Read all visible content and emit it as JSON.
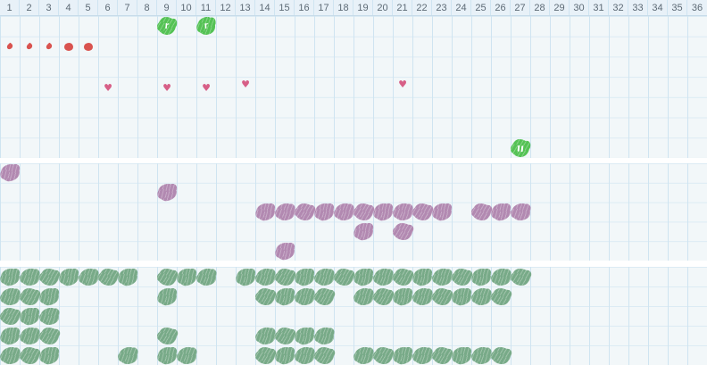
{
  "day_labels": [
    "1",
    "2",
    "3",
    "4",
    "5",
    "6",
    "7",
    "8",
    "9",
    "10",
    "11",
    "12",
    "13",
    "14",
    "15",
    "16",
    "17",
    "18",
    "19",
    "20",
    "21",
    "22",
    "23",
    "24",
    "25",
    "26",
    "27",
    "28",
    "29",
    "30",
    "31",
    "32",
    "33",
    "34",
    "35",
    "36"
  ],
  "colors": {
    "background": "#f2f7f9",
    "grid_vertical": "#cfe4f1",
    "grid_horizontal": "#dcebf4",
    "header_bg": "#e8f1f8",
    "header_border": "#c6dbe9",
    "header_text": "#5d6a75",
    "bright_green": "#54c254",
    "sage_green": "#78aa88",
    "purple": "#b289b1",
    "red": "#d9534f",
    "pink": "#d75f87",
    "gap": "#ffffff"
  },
  "icons": {
    "flower-r": {
      "glyph": "r"
    },
    "flower-pause": {
      "glyph": "‖"
    },
    "heart": {
      "glyph": "♥"
    },
    "drop-small": {
      "glyph": "small-drop"
    },
    "drop-large": {
      "glyph": "large-drop"
    },
    "blob-purple": {
      "glyph": "scribble-blob"
    },
    "blob-green": {
      "glyph": "scribble-blob"
    }
  },
  "chart_data": {
    "type": "table",
    "title": "",
    "x_labels": [
      "1",
      "2",
      "3",
      "4",
      "5",
      "6",
      "7",
      "8",
      "9",
      "10",
      "11",
      "12",
      "13",
      "14",
      "15",
      "16",
      "17",
      "18",
      "19",
      "20",
      "21",
      "22",
      "23",
      "24",
      "25",
      "26",
      "27",
      "28",
      "29",
      "30",
      "31",
      "32",
      "33",
      "34",
      "35",
      "36"
    ],
    "x_range": [
      1,
      36
    ],
    "grid": true,
    "sections": [
      {
        "id": "top",
        "rows": 7
      },
      {
        "id": "middle",
        "rows": 5
      },
      {
        "id": "bottom",
        "rows": 5
      }
    ],
    "rows": [
      {
        "section": "top",
        "row": 1,
        "symbol": "flower-r",
        "days": [
          9,
          11
        ]
      },
      {
        "section": "top",
        "row": 2,
        "symbol": "drop-small",
        "days": [
          1,
          2,
          3
        ]
      },
      {
        "section": "top",
        "row": 2,
        "symbol": "drop-large",
        "days": [
          4,
          5
        ]
      },
      {
        "section": "top",
        "row": 4,
        "symbol": "heart",
        "days": [
          6,
          9,
          11
        ],
        "dy": 4
      },
      {
        "section": "top",
        "row": 4,
        "symbol": "heart",
        "days": [
          13,
          21
        ],
        "dy": -4
      },
      {
        "section": "top",
        "row": 7,
        "symbol": "flower-pause",
        "days": [
          27
        ]
      },
      {
        "section": "middle",
        "row": 1,
        "symbol": "blob-purple",
        "days": [
          1
        ]
      },
      {
        "section": "middle",
        "row": 2,
        "symbol": "blob-purple",
        "days": [
          9
        ]
      },
      {
        "section": "middle",
        "row": 3,
        "symbol": "blob-purple",
        "days": [
          14,
          15,
          16,
          17,
          18,
          19,
          20,
          21,
          22,
          23,
          25,
          26,
          27
        ]
      },
      {
        "section": "middle",
        "row": 4,
        "symbol": "blob-purple",
        "days": [
          19,
          21
        ]
      },
      {
        "section": "middle",
        "row": 5,
        "symbol": "blob-purple",
        "days": [
          15
        ]
      },
      {
        "section": "bottom",
        "row": 1,
        "symbol": "blob-green",
        "days": [
          1,
          2,
          3,
          4,
          5,
          6,
          7,
          9,
          10,
          11,
          13,
          14,
          15,
          16,
          17,
          18,
          19,
          20,
          21,
          22,
          23,
          24,
          25,
          26,
          27
        ]
      },
      {
        "section": "bottom",
        "row": 2,
        "symbol": "blob-green",
        "days": [
          1,
          2,
          3,
          9,
          14,
          15,
          16,
          17,
          19,
          20,
          21,
          22,
          23,
          24,
          25,
          26
        ]
      },
      {
        "section": "bottom",
        "row": 3,
        "symbol": "blob-green",
        "days": [
          1,
          2,
          3
        ]
      },
      {
        "section": "bottom",
        "row": 4,
        "symbol": "blob-green",
        "days": [
          1,
          2,
          3,
          9,
          14,
          15,
          16,
          17
        ]
      },
      {
        "section": "bottom",
        "row": 5,
        "symbol": "blob-green",
        "days": [
          1,
          2,
          3,
          7,
          9,
          10,
          14,
          15,
          16,
          17,
          19,
          20,
          21,
          22,
          23,
          24,
          25,
          26
        ]
      }
    ]
  }
}
